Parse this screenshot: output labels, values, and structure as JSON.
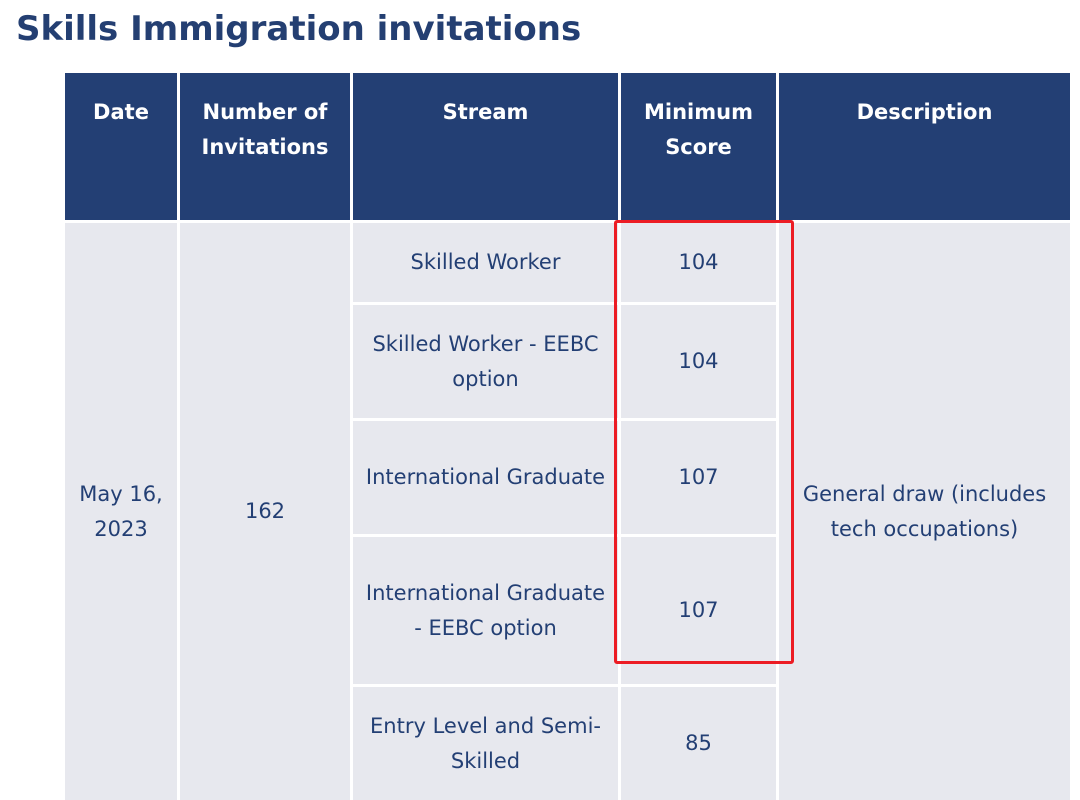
{
  "page": {
    "title": "Skills Immigration invitations"
  },
  "table": {
    "headers": {
      "date": "Date",
      "invitations": "Number of Invitations",
      "stream": "Stream",
      "min_score": "Minimum Score",
      "description": "Description"
    },
    "draw": {
      "date": "May 16, 2023",
      "invitations": "162",
      "description": "General draw (includes tech occupations)"
    },
    "rows": [
      {
        "stream": "Skilled Worker",
        "min_score": "104"
      },
      {
        "stream": "Skilled Worker - EEBC option",
        "min_score": "104"
      },
      {
        "stream": "International Graduate",
        "min_score": "107"
      },
      {
        "stream": "International Graduate - EEBC option",
        "min_score": "107"
      },
      {
        "stream": "Entry Level and Semi-Skilled",
        "min_score": "85"
      }
    ]
  },
  "annotation": {
    "highlight_color": "#ec1c24"
  }
}
